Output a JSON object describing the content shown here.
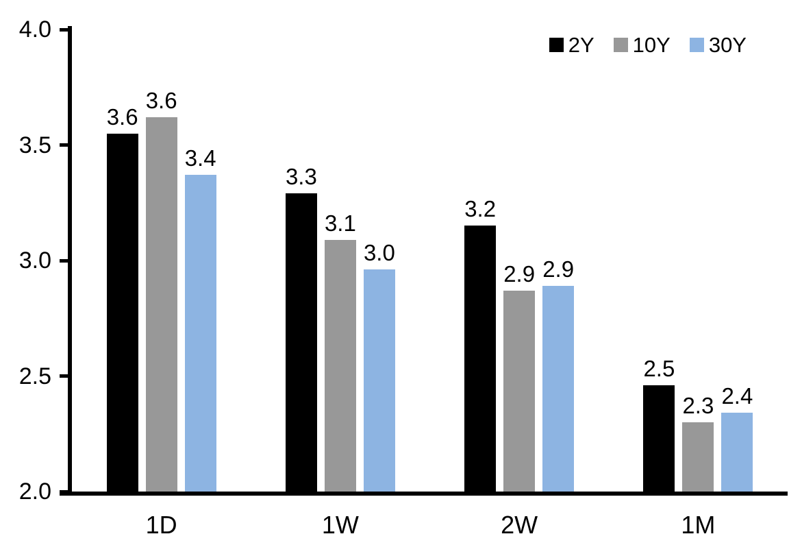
{
  "chart_data": {
    "type": "bar",
    "title": "",
    "xlabel": "",
    "ylabel": "",
    "categories": [
      "1D",
      "1W",
      "2W",
      "1M"
    ],
    "series": [
      {
        "name": "2Y",
        "color": "#000000",
        "values": [
          3.6,
          3.3,
          3.2,
          2.5
        ],
        "labels": [
          "3.6",
          "3.3",
          "3.2",
          "2.5"
        ],
        "values_precise": [
          3.55,
          3.29,
          3.15,
          2.46
        ]
      },
      {
        "name": "10Y",
        "color": "#989898",
        "values": [
          3.6,
          3.1,
          2.9,
          2.3
        ],
        "labels": [
          "3.6",
          "3.1",
          "2.9",
          "2.3"
        ],
        "values_precise": [
          3.62,
          3.09,
          2.87,
          2.3
        ]
      },
      {
        "name": "30Y",
        "color": "#8DB4E2",
        "values": [
          3.4,
          3.0,
          2.9,
          2.4
        ],
        "labels": [
          "3.4",
          "3.0",
          "2.9",
          "2.4"
        ],
        "values_precise": [
          3.37,
          2.96,
          2.89,
          2.34
        ]
      }
    ],
    "ylim": [
      2.0,
      4.0
    ],
    "ytick_step": 0.5,
    "ytick_labels": [
      "4.0",
      "3.5",
      "3.0",
      "2.5",
      "2.0"
    ],
    "grid": false,
    "legend_position": "top-right",
    "axis_color": "#000000",
    "text_color": "#000000",
    "background_color": "#ffffff"
  }
}
